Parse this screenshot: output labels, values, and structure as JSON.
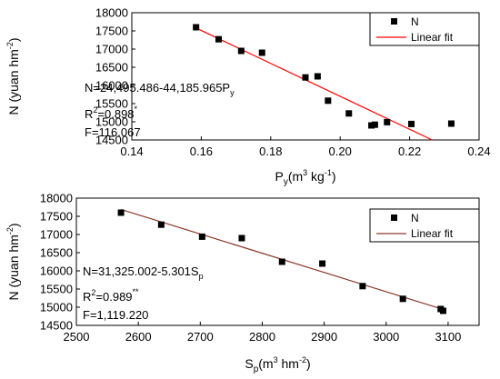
{
  "chart_data": [
    {
      "type": "scatter",
      "title": "",
      "xlabel": {
        "base": "P",
        "sub": "y",
        "unit_pre": "(m",
        "unit_sup1": "3",
        "unit_mid": " kg",
        "unit_sup2": "-1",
        "unit_post": ")"
      },
      "ylabel": {
        "text": "N (yuan hm",
        "sup": "-2",
        "post": ")"
      },
      "xlim": [
        0.14,
        0.24
      ],
      "ylim": [
        14500,
        18000
      ],
      "xticks": [
        "0.14",
        "0.16",
        "0.18",
        "0.20",
        "0.22",
        "0.24"
      ],
      "yticks": [
        "14500",
        "15000",
        "15500",
        "16000",
        "16500",
        "17000",
        "17500",
        "18000"
      ],
      "legend": {
        "placement": "top-right",
        "points_label": "N",
        "line_label": "Linear fit"
      },
      "series": [
        {
          "name": "N",
          "kind": "points",
          "color": "#000000",
          "x": [
            0.1585,
            0.165,
            0.1715,
            0.1775,
            0.19,
            0.1935,
            0.1965,
            0.2025,
            0.209,
            0.21,
            0.2135,
            0.2205,
            0.232
          ],
          "y": [
            17600,
            17270,
            16950,
            16900,
            16220,
            16250,
            15580,
            15230,
            14900,
            14920,
            14990,
            14940,
            14950
          ]
        },
        {
          "name": "Linear fit",
          "kind": "line",
          "color": "#ff0000",
          "x": [
            0.1585,
            0.2265
          ],
          "y": [
            17580,
            14500
          ]
        }
      ],
      "annotations": {
        "equation": "N=24,495.486-44,185.965P",
        "equation_sub": "y",
        "r2": "R",
        "r2_sup": "2",
        "r2_val": "=0.898",
        "r2_star": "*",
        "f": "F=116.067"
      }
    },
    {
      "type": "scatter",
      "title": "",
      "xlabel": {
        "base": "S",
        "sub": "p",
        "unit_pre": "(m",
        "unit_sup1": "3",
        "unit_mid": " hm",
        "unit_sup2": "-2",
        "unit_post": ")"
      },
      "ylabel": {
        "text": "N (yuan hm",
        "sup": "-2",
        "post": ")"
      },
      "xlim": [
        2500,
        3150
      ],
      "ylim": [
        14500,
        18000
      ],
      "xticks": [
        "2500",
        "2600",
        "2700",
        "2800",
        "2900",
        "3000",
        "3100"
      ],
      "yticks": [
        "14500",
        "15000",
        "15500",
        "16000",
        "16500",
        "17000",
        "17500",
        "18000"
      ],
      "legend": {
        "placement": "top-right",
        "points_label": "N",
        "line_label": "Linear fit"
      },
      "series": [
        {
          "name": "N",
          "kind": "points",
          "color": "#000000",
          "x": [
            2572,
            2637,
            2703,
            2767,
            2832,
            2897,
            2962,
            3027,
            3088,
            3092
          ],
          "y": [
            17600,
            17270,
            16940,
            16900,
            16250,
            16200,
            15580,
            15230,
            14950,
            14900
          ]
        },
        {
          "name": "Linear fit",
          "kind": "line",
          "color": "#8b3a2a",
          "x": [
            2572,
            3092
          ],
          "y": [
            17690,
            14940
          ]
        }
      ],
      "annotations": {
        "equation": "N=31,325.002-5.301S",
        "equation_sub": "p",
        "r2": "R",
        "r2_sup": "2",
        "r2_val": "=0.989",
        "r2_star": "**",
        "f": "F=1,119.220"
      }
    }
  ]
}
